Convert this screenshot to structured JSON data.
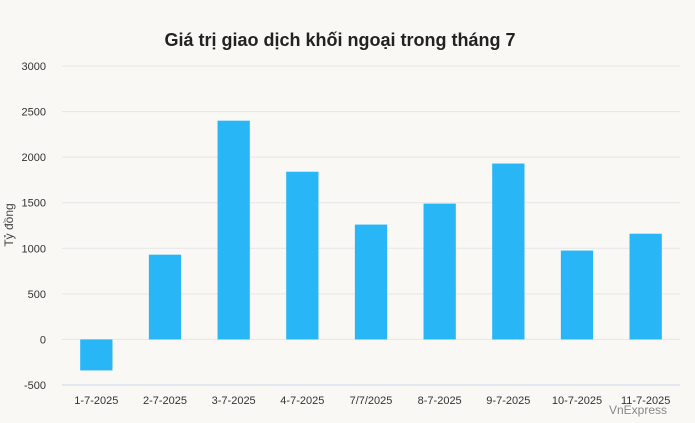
{
  "chart_data": {
    "type": "bar",
    "title": "Giá trị giao dịch khối ngoại trong tháng 7",
    "xlabel": "",
    "ylabel": "Tỷ đồng",
    "categories": [
      "1-7-2025",
      "2-7-2025",
      "3-7-2025",
      "4-7-2025",
      "7/7/2025",
      "8-7-2025",
      "9-7-2025",
      "10-7-2025",
      "11-7-2025"
    ],
    "values": [
      -340,
      930,
      2400,
      1840,
      1260,
      1490,
      1930,
      975,
      1160
    ],
    "ylim": [
      -500,
      3000
    ],
    "yticks": [
      -500,
      0,
      500,
      1000,
      1500,
      2000,
      2500,
      3000
    ],
    "grid": true,
    "legend": "none",
    "bar_color": "#29b6f6",
    "grid_color": "#e6e6e6",
    "axis_color": "#ccd6eb"
  },
  "credit": "VnExpress"
}
